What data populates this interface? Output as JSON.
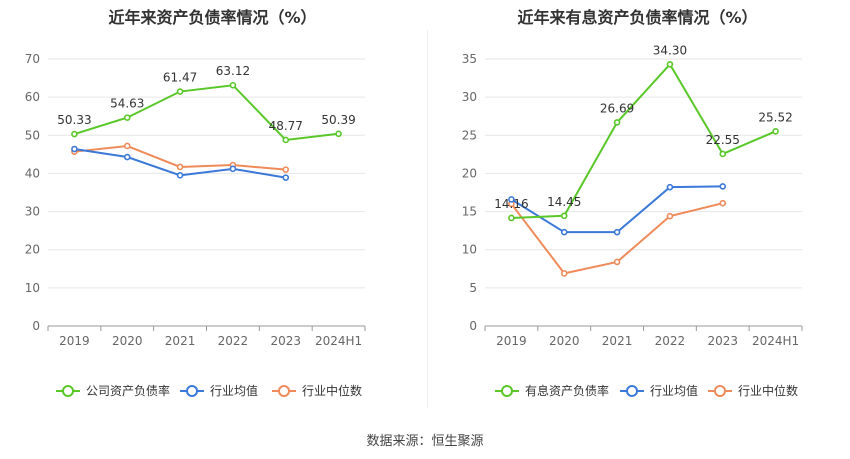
{
  "source_label": "数据来源：恒生聚源",
  "chart_data": [
    {
      "type": "line",
      "title": "近年来资产负债率情况（%）",
      "categories": [
        "2019",
        "2020",
        "2021",
        "2022",
        "2023",
        "2024H1"
      ],
      "ylim": [
        0,
        70
      ],
      "yticks": [
        0,
        10,
        20,
        30,
        40,
        50,
        60,
        70
      ],
      "grid": true,
      "legend_position": "bottom",
      "series": [
        {
          "name": "公司资产负债率",
          "color": "#5ac729",
          "values": [
            50.33,
            54.63,
            61.47,
            63.12,
            48.77,
            50.39
          ],
          "labels": [
            "50.33",
            "54.63",
            "61.47",
            "63.12",
            "48.77",
            "50.39"
          ]
        },
        {
          "name": "行业均值",
          "color": "#3b78d8",
          "values": [
            46.4,
            44.3,
            39.5,
            41.2,
            38.9,
            null
          ],
          "labels": null
        },
        {
          "name": "行业中位数",
          "color": "#ef8a5a",
          "values": [
            45.7,
            47.2,
            41.7,
            42.2,
            41.0,
            null
          ],
          "labels": null
        }
      ]
    },
    {
      "type": "line",
      "title": "近年来有息资产负债率情况（%）",
      "categories": [
        "2019",
        "2020",
        "2021",
        "2022",
        "2023",
        "2024H1"
      ],
      "ylim": [
        0,
        35
      ],
      "yticks": [
        0,
        5,
        10,
        15,
        20,
        25,
        30,
        35
      ],
      "grid": true,
      "legend_position": "bottom",
      "series": [
        {
          "name": "有息资产负债率",
          "color": "#5ac729",
          "values": [
            14.16,
            14.45,
            26.69,
            34.3,
            22.55,
            25.52
          ],
          "labels": [
            "14.16",
            "14.45",
            "26.69",
            "34.30",
            "22.55",
            "25.52"
          ]
        },
        {
          "name": "行业均值",
          "color": "#3b78d8",
          "values": [
            16.6,
            12.3,
            12.3,
            18.2,
            18.3,
            null
          ],
          "labels": null
        },
        {
          "name": "行业中位数",
          "color": "#ef8a5a",
          "values": [
            16.0,
            6.9,
            8.4,
            14.4,
            16.1,
            null
          ],
          "labels": null
        }
      ]
    }
  ]
}
